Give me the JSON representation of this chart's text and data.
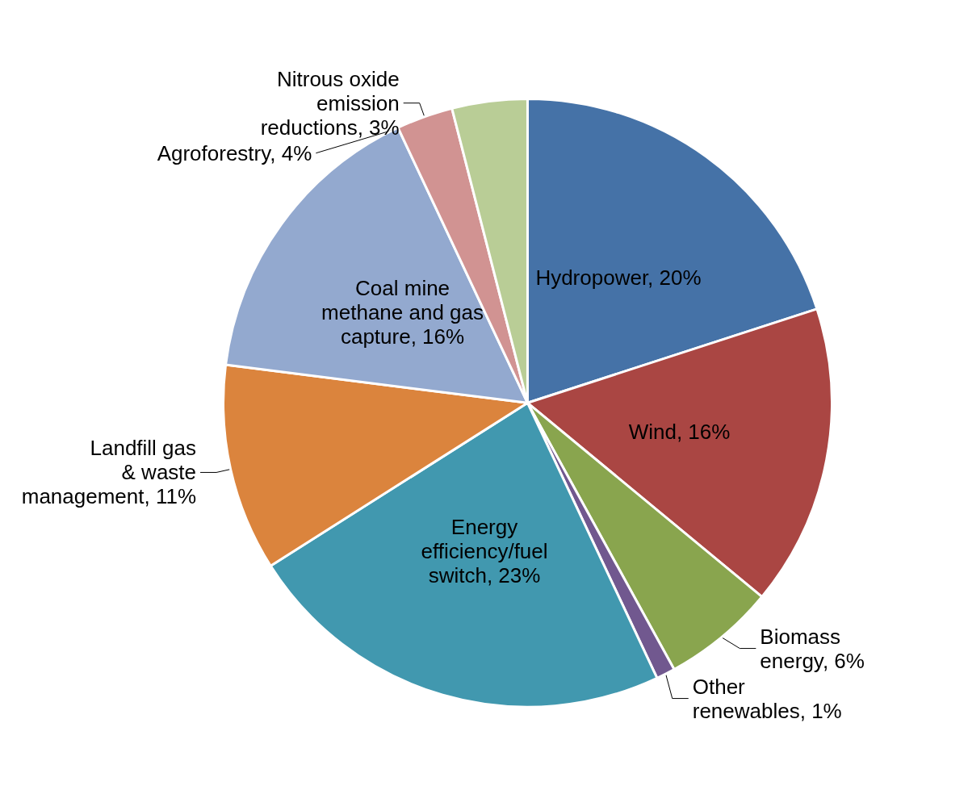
{
  "chart_data": {
    "type": "pie",
    "categories": [
      "Hydropower",
      "Wind",
      "Biomass energy",
      "Other renewables",
      "Energy efficiency/fuel switch",
      "Landfill gas & waste management",
      "Coal mine methane and gas capture",
      "Nitrous oxide emission reductions",
      "Agroforestry"
    ],
    "values": [
      20,
      16,
      6,
      1,
      23,
      11,
      16,
      3,
      4
    ],
    "value_labels": [
      "20%",
      "16%",
      "6%",
      "1%",
      "23%",
      "11%",
      "16%",
      "3%",
      "4%"
    ],
    "colors": [
      "#4572a7",
      "#aa4643",
      "#89a54e",
      "#71588f",
      "#4198af",
      "#db843d",
      "#93a9cf",
      "#d19392",
      "#b9cd96"
    ],
    "legend": false
  }
}
